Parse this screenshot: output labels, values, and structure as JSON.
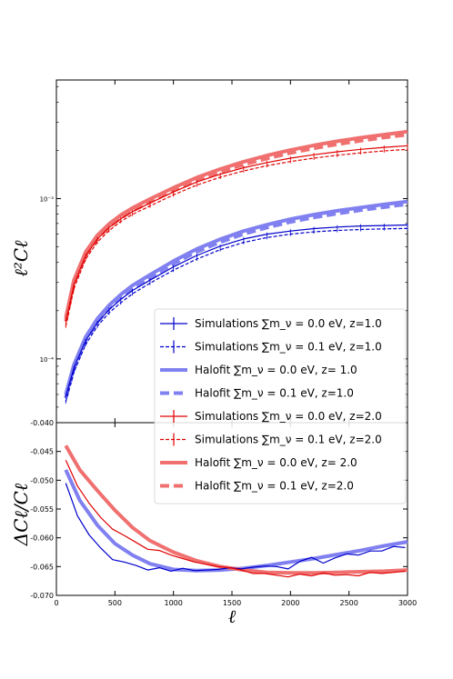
{
  "chart_data": [
    {
      "type": "line",
      "panel": "top",
      "ylabel": "ℓ²Cℓ",
      "yscale": "log",
      "xlim": [
        0,
        3000
      ],
      "ylim": [
        4e-05,
        0.0055
      ],
      "yticks": [
        {
          "value": 0.0001,
          "label": "10⁻⁴"
        },
        {
          "value": 0.001,
          "label": "10⁻³"
        }
      ],
      "grid": false,
      "legend_position": "lower-right",
      "x": [
        80,
        150,
        250,
        350,
        450,
        550,
        650,
        800,
        1000,
        1200,
        1400,
        1600,
        1800,
        2000,
        2200,
        2400,
        2600,
        2800,
        3000
      ],
      "series": [
        {
          "name": "Simulations ∑m_ν = 0.0 eV, z=1.0",
          "color": "#0000cc",
          "style": "solid-thin",
          "errorbars": true,
          "values": [
            5.8e-05,
            8.8e-05,
            0.00013,
            0.000168,
            0.000203,
            0.000235,
            0.000267,
            0.00031,
            0.000375,
            0.000442,
            0.000505,
            0.00056,
            0.0006,
            0.000628,
            0.00065,
            0.000665,
            0.000675,
            0.00068,
            0.000685
          ]
        },
        {
          "name": "Simulations ∑m_ν = 0.1 eV, z=1.0",
          "color": "#0000cc",
          "style": "dashed-thin",
          "errorbars": true,
          "values": [
            5.4e-05,
            8.3e-05,
            0.000123,
            0.00016,
            0.000194,
            0.000224,
            0.000255,
            0.000297,
            0.000358,
            0.00042,
            0.00048,
            0.000533,
            0.000572,
            0.0006,
            0.00062,
            0.000633,
            0.000642,
            0.000648,
            0.000652
          ]
        },
        {
          "name": "Halofit ∑m_ν = 0.0 eV, z= 1.0",
          "color": "#8080f0",
          "style": "solid-thick",
          "errorbars": false,
          "values": [
            6e-05,
            9.2e-05,
            0.000137,
            0.000178,
            0.000216,
            0.000252,
            0.000287,
            0.000335,
            0.000408,
            0.000485,
            0.000558,
            0.000628,
            0.000688,
            0.000745,
            0.000795,
            0.00084,
            0.00088,
            0.00092,
            0.00096
          ]
        },
        {
          "name": "Halofit ∑m_ν = 0.1 eV, z=1.0",
          "color": "#8080f0",
          "style": "dashed-thick",
          "errorbars": false,
          "values": [
            5.7e-05,
            8.7e-05,
            0.00013,
            0.00017,
            0.000207,
            0.000242,
            0.000276,
            0.000322,
            0.000392,
            0.000466,
            0.000535,
            0.000602,
            0.00066,
            0.000715,
            0.000763,
            0.000807,
            0.000847,
            0.000885,
            0.000925
          ]
        },
        {
          "name": "Simulations ∑m_ν = 0.0 eV, z=2.0",
          "color": "#e00000",
          "style": "solid-thin",
          "errorbars": true,
          "values": [
            0.00017,
            0.00029,
            0.00044,
            0.00056,
            0.00066,
            0.00075,
            0.00083,
            0.00094,
            0.0011,
            0.00127,
            0.00142,
            0.00156,
            0.00168,
            0.00179,
            0.00188,
            0.00196,
            0.00203,
            0.00209,
            0.00214
          ]
        },
        {
          "name": "Simulations ∑m_ν = 0.1 eV, z=2.0",
          "color": "#e00000",
          "style": "dashed-thin",
          "errorbars": true,
          "values": [
            0.00016,
            0.000275,
            0.00042,
            0.000535,
            0.000632,
            0.00072,
            0.000797,
            0.0009,
            0.001055,
            0.001215,
            0.00136,
            0.00149,
            0.001605,
            0.001705,
            0.00179,
            0.001865,
            0.00193,
            0.001985,
            0.00203
          ]
        },
        {
          "name": "Halofit ∑m_ν = 0.0 eV, z= 2.0",
          "color": "#f07070",
          "style": "solid-thick",
          "errorbars": false,
          "values": [
            0.00018,
            0.00031,
            0.000465,
            0.00059,
            0.000695,
            0.00079,
            0.000875,
            0.000995,
            0.00117,
            0.001355,
            0.00153,
            0.0017,
            0.00186,
            0.00201,
            0.00215,
            0.00228,
            0.0024,
            0.00251,
            0.00262
          ]
        },
        {
          "name": "Halofit ∑m_ν = 0.1 eV, z=2.0",
          "color": "#f07070",
          "style": "dashed-thick",
          "errorbars": false,
          "values": [
            0.000172,
            0.000296,
            0.000445,
            0.000565,
            0.000666,
            0.000757,
            0.000839,
            0.000955,
            0.001122,
            0.0013,
            0.001468,
            0.00163,
            0.001783,
            0.001926,
            0.00206,
            0.002184,
            0.0023,
            0.002405,
            0.00251
          ]
        }
      ]
    },
    {
      "type": "line",
      "panel": "bottom",
      "xlabel": "ℓ",
      "ylabel": "ΔCℓ/Cℓ",
      "xlim": [
        0,
        3000
      ],
      "ylim": [
        -0.07,
        -0.04
      ],
      "xticks": [
        0,
        500,
        1000,
        1500,
        2000,
        2500,
        3000
      ],
      "yticks": [
        -0.07,
        -0.065,
        -0.06,
        -0.055,
        -0.05,
        -0.045,
        -0.04
      ],
      "grid": false,
      "series": [
        {
          "name": "Simulations z=1.0",
          "color": "#0000cc",
          "style": "solid-thin",
          "x": [
            80,
            180,
            280,
            380,
            480,
            580,
            680,
            780,
            880,
            980,
            1080,
            1180,
            1280,
            1380,
            1480,
            1580,
            1680,
            1780,
            1880,
            1980,
            2080,
            2180,
            2280,
            2380,
            2480,
            2580,
            2680,
            2780,
            2880,
            2980
          ],
          "values": [
            -0.0505,
            -0.0562,
            -0.0595,
            -0.0618,
            -0.0638,
            -0.0642,
            -0.0648,
            -0.0656,
            -0.0652,
            -0.0658,
            -0.0653,
            -0.0657,
            -0.0656,
            -0.0655,
            -0.0652,
            -0.0654,
            -0.0651,
            -0.0649,
            -0.065,
            -0.0654,
            -0.0641,
            -0.0634,
            -0.0644,
            -0.0635,
            -0.0628,
            -0.063,
            -0.0623,
            -0.0623,
            -0.0615,
            -0.0617
          ]
        },
        {
          "name": "Halofit z=1.0",
          "color": "#8080f0",
          "style": "solid-thick",
          "x": [
            80,
            200,
            350,
            500,
            650,
            800,
            1000,
            1200,
            1400,
            1600,
            1800,
            2000,
            2200,
            2400,
            2600,
            2800,
            3000
          ],
          "values": [
            -0.0482,
            -0.0535,
            -0.0578,
            -0.061,
            -0.063,
            -0.0645,
            -0.0655,
            -0.0657,
            -0.0656,
            -0.0653,
            -0.0648,
            -0.0642,
            -0.0636,
            -0.0629,
            -0.0622,
            -0.0614,
            -0.0607
          ]
        },
        {
          "name": "Simulations z=2.0",
          "color": "#e00000",
          "style": "solid-thin",
          "x": [
            80,
            180,
            280,
            380,
            480,
            580,
            680,
            780,
            880,
            980,
            1080,
            1180,
            1280,
            1380,
            1480,
            1580,
            1680,
            1780,
            1880,
            1980,
            2080,
            2180,
            2280,
            2380,
            2480,
            2580,
            2680,
            2780,
            2880,
            2980
          ],
          "values": [
            -0.0465,
            -0.051,
            -0.054,
            -0.0565,
            -0.0585,
            -0.0596,
            -0.0608,
            -0.062,
            -0.0622,
            -0.063,
            -0.0636,
            -0.0642,
            -0.0646,
            -0.065,
            -0.0652,
            -0.0656,
            -0.0662,
            -0.0662,
            -0.0665,
            -0.0668,
            -0.0663,
            -0.0666,
            -0.0661,
            -0.0665,
            -0.0664,
            -0.0666,
            -0.066,
            -0.0662,
            -0.066,
            -0.0658
          ]
        },
        {
          "name": "Halofit z=2.0",
          "color": "#f07070",
          "style": "solid-thick",
          "x": [
            80,
            200,
            350,
            500,
            650,
            800,
            1000,
            1200,
            1400,
            1600,
            1800,
            2000,
            2200,
            2400,
            2600,
            2800,
            3000
          ],
          "values": [
            -0.044,
            -0.0482,
            -0.0518,
            -0.0552,
            -0.0582,
            -0.0605,
            -0.0625,
            -0.064,
            -0.065,
            -0.0656,
            -0.066,
            -0.0661,
            -0.0661,
            -0.066,
            -0.0659,
            -0.0658,
            -0.0656
          ]
        }
      ]
    }
  ],
  "legend": [
    {
      "label": "Simulations ∑m_ν = 0.0 eV, z=1.0",
      "color": "#0000cc",
      "style": "solid-thin",
      "errorbars": true
    },
    {
      "label": "Simulations ∑m_ν = 0.1 eV, z=1.0",
      "color": "#0000cc",
      "style": "dashed-thin",
      "errorbars": true
    },
    {
      "label": "Halofit ∑m_ν = 0.0 eV, z= 1.0",
      "color": "#8080f0",
      "style": "solid-thick",
      "errorbars": false
    },
    {
      "label": "Halofit ∑m_ν = 0.1 eV, z=1.0",
      "color": "#8080f0",
      "style": "dashed-thick",
      "errorbars": false
    },
    {
      "label": "Simulations ∑m_ν = 0.0 eV, z=2.0",
      "color": "#e00000",
      "style": "solid-thin",
      "errorbars": true
    },
    {
      "label": "Simulations ∑m_ν = 0.1 eV, z=2.0",
      "color": "#e00000",
      "style": "dashed-thin",
      "errorbars": true
    },
    {
      "label": "Halofit ∑m_ν = 0.0 eV, z= 2.0",
      "color": "#f07070",
      "style": "solid-thick",
      "errorbars": false
    },
    {
      "label": "Halofit ∑m_ν = 0.1 eV, z=2.0",
      "color": "#f07070",
      "style": "dashed-thick",
      "errorbars": false
    }
  ]
}
